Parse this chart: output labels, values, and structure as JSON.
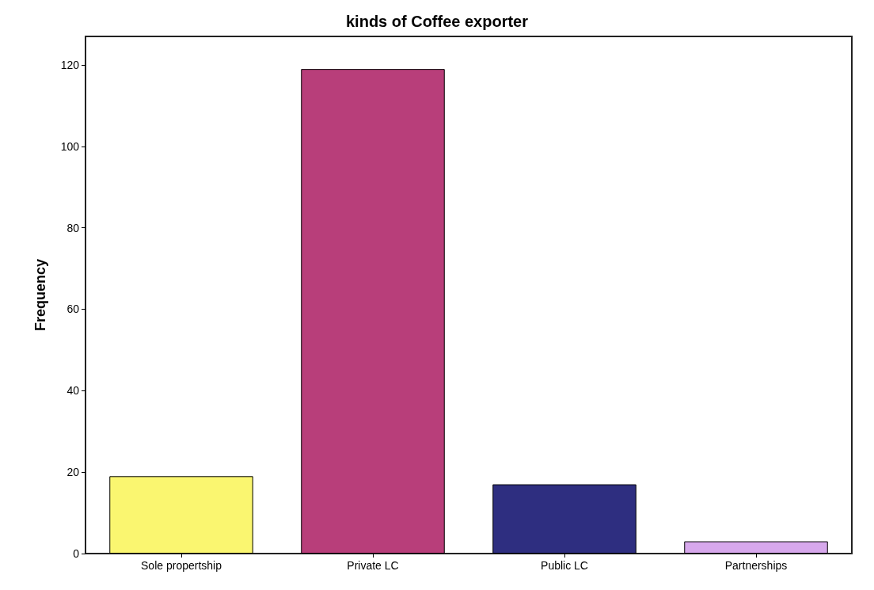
{
  "chart_data": {
    "type": "bar",
    "title": "kinds of Coffee exporter",
    "ylabel": "Frequency",
    "categories": [
      "Sole propertship",
      "Private LC",
      "Public LC",
      "Partnerships"
    ],
    "values": [
      19,
      119,
      17,
      3
    ],
    "colors": [
      "#faf670",
      "#b83e7a",
      "#2e2e80",
      "#d7a8ec"
    ],
    "ylim": [
      0,
      127
    ],
    "yticks": [
      0,
      20,
      40,
      60,
      80,
      100,
      120
    ],
    "grid": false
  }
}
